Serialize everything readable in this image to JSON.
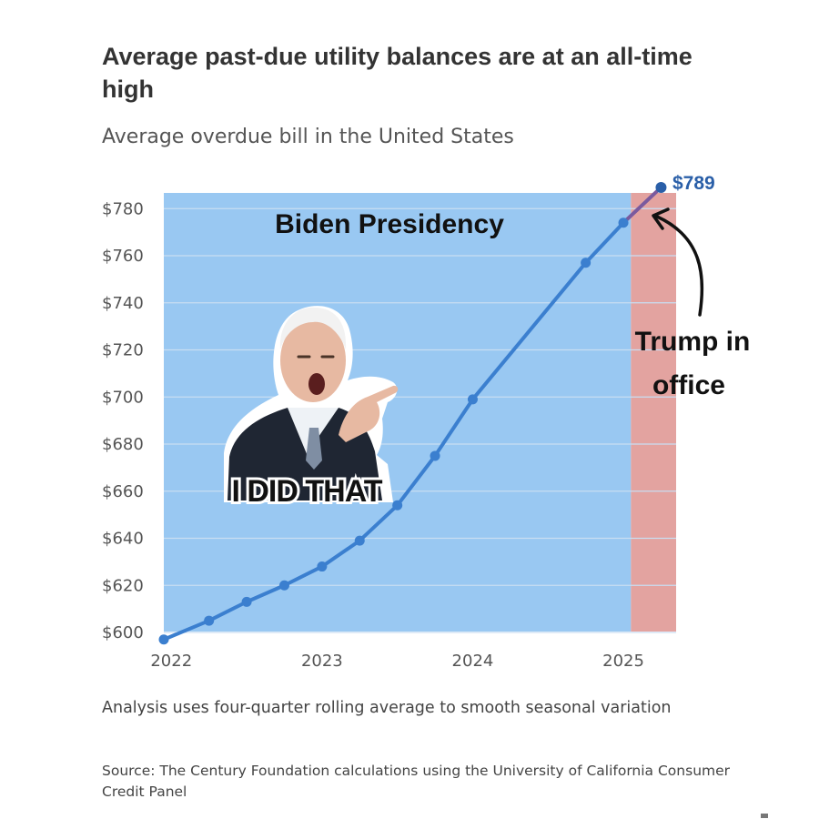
{
  "header": {
    "title": "Average past-due utility balances are at an all-time high",
    "subtitle": "Average overdue bill in the United States"
  },
  "footer": {
    "note": "Analysis uses four-quarter rolling average to smooth seasonal variation",
    "source": "Source: The Century Foundation calculations using the University of California Consumer Credit Panel"
  },
  "annotations": {
    "biden_region_label": "Biden Presidency",
    "trump_label_line1": "Trump in",
    "trump_label_line2": "office",
    "sticker_text": "I DID THAT",
    "end_value_label": "$789"
  },
  "colors": {
    "biden_region": "#99c8f2",
    "trump_region": "#e3a3a0",
    "line": "#3b7fcf",
    "line_trump": "#7a5a9e",
    "gridline": "#c9def2"
  },
  "chart_data": {
    "type": "line",
    "title": "Average past-due utility balances are at an all-time high",
    "subtitle": "Average overdue bill in the United States",
    "xlabel": "",
    "ylabel": "",
    "ylim": [
      600,
      785
    ],
    "xlim": [
      2021.95,
      2025.35
    ],
    "y_ticks": [
      600,
      620,
      640,
      660,
      680,
      700,
      720,
      740,
      760,
      780
    ],
    "y_tick_labels": [
      "$600",
      "$620",
      "$640",
      "$660",
      "$680",
      "$700",
      "$720",
      "$740",
      "$760",
      "$780"
    ],
    "x_ticks": [
      2022,
      2023,
      2024,
      2025
    ],
    "x_tick_labels": [
      "2022",
      "2023",
      "2024",
      "2025"
    ],
    "regions": [
      {
        "name": "Biden Presidency",
        "x_start": 2021.95,
        "x_end": 2025.05
      },
      {
        "name": "Trump in office",
        "x_start": 2025.05,
        "x_end": 2025.35
      }
    ],
    "series": [
      {
        "name": "Average overdue bill",
        "x": [
          2021.95,
          2022.25,
          2022.5,
          2022.75,
          2023.0,
          2023.25,
          2023.5,
          2023.75,
          2024.0,
          2024.75,
          2025.0,
          2025.25
        ],
        "values": [
          597,
          605,
          613,
          620,
          628,
          639,
          654,
          675,
          699,
          757,
          774,
          789
        ]
      }
    ]
  }
}
